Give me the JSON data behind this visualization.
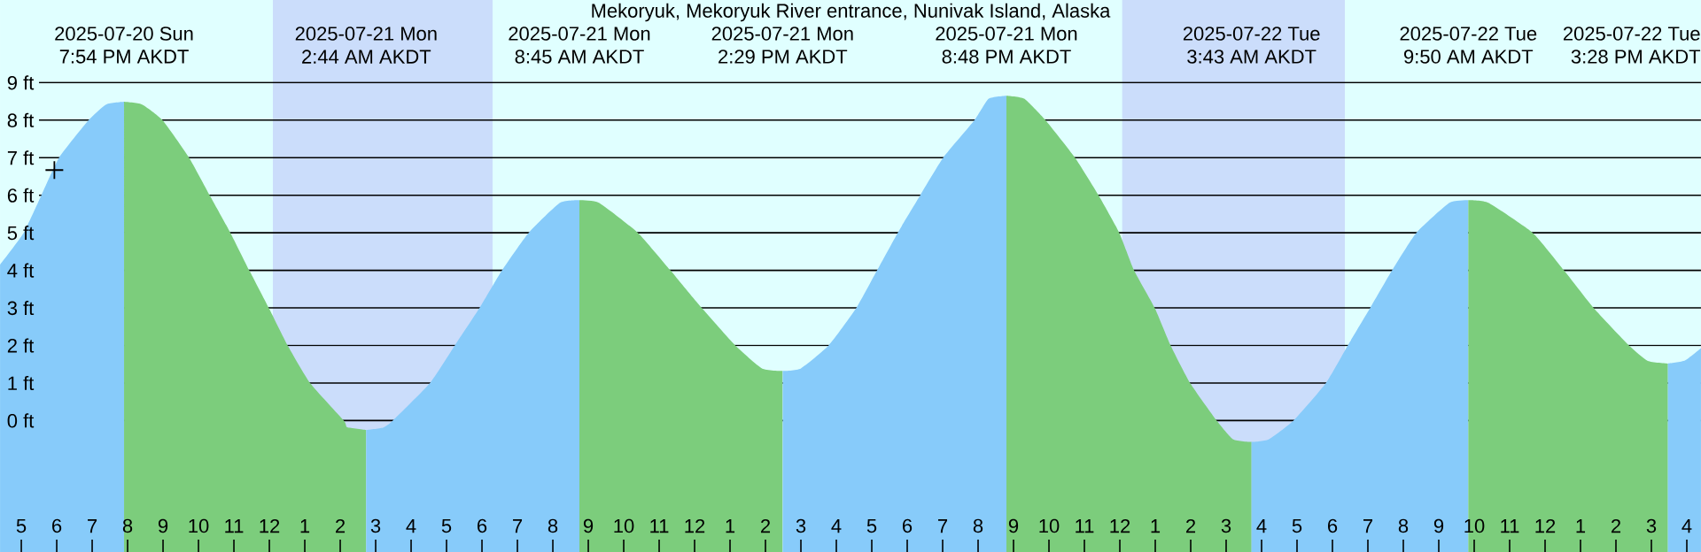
{
  "chart_data": {
    "type": "area",
    "title": "Mekoryuk, Mekoryuk River entrance, Nunivak Island, Alaska",
    "xlim": [
      "2025-07-20T16:24",
      "2025-07-22T16:24"
    ],
    "ylim": [
      -3.5,
      11.2
    ],
    "xticks": [
      {
        "value": "2025-07-20T17:00",
        "label": "5"
      },
      {
        "value": "2025-07-20T18:00",
        "label": "6"
      },
      {
        "value": "2025-07-20T19:00",
        "label": "7"
      },
      {
        "value": "2025-07-20T20:00",
        "label": "8"
      },
      {
        "value": "2025-07-20T21:00",
        "label": "9"
      },
      {
        "value": "2025-07-20T22:00",
        "label": "10"
      },
      {
        "value": "2025-07-20T23:00",
        "label": "11"
      },
      {
        "value": "2025-07-21T00:00",
        "label": "12"
      },
      {
        "value": "2025-07-21T01:00",
        "label": "1"
      },
      {
        "value": "2025-07-21T02:00",
        "label": "2"
      },
      {
        "value": "2025-07-21T03:00",
        "label": "3"
      },
      {
        "value": "2025-07-21T04:00",
        "label": "4"
      },
      {
        "value": "2025-07-21T05:00",
        "label": "5"
      },
      {
        "value": "2025-07-21T06:00",
        "label": "6"
      },
      {
        "value": "2025-07-21T07:00",
        "label": "7"
      },
      {
        "value": "2025-07-21T08:00",
        "label": "8"
      },
      {
        "value": "2025-07-21T09:00",
        "label": "9"
      },
      {
        "value": "2025-07-21T10:00",
        "label": "10"
      },
      {
        "value": "2025-07-21T11:00",
        "label": "11"
      },
      {
        "value": "2025-07-21T12:00",
        "label": "12"
      },
      {
        "value": "2025-07-21T13:00",
        "label": "1"
      },
      {
        "value": "2025-07-21T14:00",
        "label": "2"
      },
      {
        "value": "2025-07-21T15:00",
        "label": "3"
      },
      {
        "value": "2025-07-21T16:00",
        "label": "4"
      },
      {
        "value": "2025-07-21T17:00",
        "label": "5"
      },
      {
        "value": "2025-07-21T18:00",
        "label": "6"
      },
      {
        "value": "2025-07-21T19:00",
        "label": "7"
      },
      {
        "value": "2025-07-21T20:00",
        "label": "8"
      },
      {
        "value": "2025-07-21T21:00",
        "label": "9"
      },
      {
        "value": "2025-07-21T22:00",
        "label": "10"
      },
      {
        "value": "2025-07-21T23:00",
        "label": "11"
      },
      {
        "value": "2025-07-22T00:00",
        "label": "12"
      },
      {
        "value": "2025-07-22T01:00",
        "label": "1"
      },
      {
        "value": "2025-07-22T02:00",
        "label": "2"
      },
      {
        "value": "2025-07-22T03:00",
        "label": "3"
      },
      {
        "value": "2025-07-22T04:00",
        "label": "4"
      },
      {
        "value": "2025-07-22T05:00",
        "label": "5"
      },
      {
        "value": "2025-07-22T06:00",
        "label": "6"
      },
      {
        "value": "2025-07-22T07:00",
        "label": "7"
      },
      {
        "value": "2025-07-22T08:00",
        "label": "8"
      },
      {
        "value": "2025-07-22T09:00",
        "label": "9"
      },
      {
        "value": "2025-07-22T10:00",
        "label": "10"
      },
      {
        "value": "2025-07-22T11:00",
        "label": "11"
      },
      {
        "value": "2025-07-22T12:00",
        "label": "12"
      },
      {
        "value": "2025-07-22T13:00",
        "label": "1"
      },
      {
        "value": "2025-07-22T14:00",
        "label": "2"
      },
      {
        "value": "2025-07-22T15:00",
        "label": "3"
      },
      {
        "value": "2025-07-22T16:00",
        "label": "4"
      }
    ],
    "yticks": [
      {
        "value": 0,
        "label": "0 ft"
      },
      {
        "value": 1,
        "label": "1 ft"
      },
      {
        "value": 2,
        "label": "2 ft"
      },
      {
        "value": 3,
        "label": "3 ft"
      },
      {
        "value": 4,
        "label": "4 ft"
      },
      {
        "value": 5,
        "label": "5 ft"
      },
      {
        "value": 6,
        "label": "6 ft"
      },
      {
        "value": 7,
        "label": "7 ft"
      },
      {
        "value": 8,
        "label": "8 ft"
      },
      {
        "value": 9,
        "label": "9 ft"
      }
    ],
    "grid": "y",
    "bands": [
      {
        "axis": "x",
        "from": "2025-07-21T00:06",
        "to": "2025-07-21T06:18",
        "color": "#cbddfb"
      },
      {
        "axis": "x",
        "from": "2025-07-22T00:04",
        "to": "2025-07-22T06:21",
        "color": "#cbddfb"
      }
    ],
    "annotations": [
      "2025-07-20 Sun",
      "7:54 PM AKDT",
      "2025-07-21 Mon",
      "2:44 AM AKDT",
      "2025-07-21 Mon",
      "8:45 AM AKDT",
      "2025-07-21 Mon",
      "2:29 PM AKDT",
      "2025-07-21 Mon",
      "8:48 PM AKDT",
      "2025-07-22 Tue",
      "3:43 AM AKDT",
      "2025-07-22 Tue",
      "9:50 AM AKDT",
      "2025-07-22 Tue",
      "3:28 PM AKDT"
    ],
    "series": [
      {
        "color": "#87cbfa",
        "x": [
          "2025-07-20T16:24",
          "2025-07-20T17:04",
          "2025-07-20T17:34",
          "2025-07-20T18:04",
          "2025-07-20T18:54",
          "2025-07-20T19:24",
          "2025-07-20T19:54"
        ],
        "values": [
          4.15,
          5,
          6,
          7,
          8,
          8.42,
          8.49
        ]
      },
      {
        "color": "#7ccd7c",
        "x": [
          "2025-07-20T19:54",
          "2025-07-20T20:24",
          "2025-07-20T20:59",
          "2025-07-20T21:44",
          "2025-07-20T22:19",
          "2025-07-20T22:54",
          "2025-07-20T23:26",
          "2025-07-20T23:59",
          "2025-07-21T00:31",
          "2025-07-21T01:09",
          "2025-07-21T02:06",
          "2025-07-21T02:12",
          "2025-07-21T02:44"
        ],
        "values": [
          8.49,
          8.42,
          8,
          7,
          6,
          5,
          4,
          3,
          2,
          1,
          0,
          -0.18,
          -0.25
        ]
      },
      {
        "color": "#87cbfa",
        "x": [
          "2025-07-21T02:44",
          "2025-07-21T03:12",
          "2025-07-21T03:29",
          "2025-07-21T04:32",
          "2025-07-21T05:14",
          "2025-07-21T05:56",
          "2025-07-21T06:34",
          "2025-07-21T07:19",
          "2025-07-21T08:12",
          "2025-07-21T08:45"
        ],
        "values": [
          -0.25,
          -0.19,
          0,
          1,
          2,
          3,
          4,
          5,
          5.8,
          5.87
        ]
      },
      {
        "color": "#7ccd7c",
        "x": [
          "2025-07-21T08:45",
          "2025-07-21T09:18",
          "2025-07-21T10:24",
          "2025-07-21T11:19",
          "2025-07-21T12:12",
          "2025-07-21T13:09",
          "2025-07-21T13:54",
          "2025-07-21T14:29"
        ],
        "values": [
          5.87,
          5.8,
          5,
          4,
          3,
          2,
          1.39,
          1.32
        ]
      },
      {
        "color": "#87cbfa",
        "x": [
          "2025-07-21T14:29",
          "2025-07-21T15:00",
          "2025-07-21T15:47",
          "2025-07-21T16:34",
          "2025-07-21T17:09",
          "2025-07-21T17:44",
          "2025-07-21T18:22",
          "2025-07-21T19:01",
          "2025-07-21T19:54",
          "2025-07-21T20:18",
          "2025-07-21T20:48"
        ],
        "values": [
          1.32,
          1.39,
          2,
          3,
          4,
          5,
          6,
          7,
          8,
          8.57,
          8.65
        ]
      },
      {
        "color": "#7ccd7c",
        "x": [
          "2025-07-21T20:48",
          "2025-07-21T21:18",
          "2025-07-21T21:54",
          "2025-07-21T22:44",
          "2025-07-21T23:24",
          "2025-07-21T23:59",
          "2025-07-22T00:24",
          "2025-07-22T00:59",
          "2025-07-22T01:26",
          "2025-07-22T01:59",
          "2025-07-22T02:44",
          "2025-07-22T03:12",
          "2025-07-22T03:43"
        ],
        "values": [
          8.65,
          8.57,
          8,
          7,
          6,
          5,
          4,
          3,
          2,
          1,
          0,
          -0.5,
          -0.57
        ]
      },
      {
        "color": "#87cbfa",
        "x": [
          "2025-07-22T03:43",
          "2025-07-22T04:12",
          "2025-07-22T04:54",
          "2025-07-22T05:49",
          "2025-07-22T06:26",
          "2025-07-22T07:04",
          "2025-07-22T07:41",
          "2025-07-22T08:22",
          "2025-07-22T09:18",
          "2025-07-22T09:50"
        ],
        "values": [
          -0.57,
          -0.5,
          0,
          1,
          2,
          3,
          4,
          5,
          5.8,
          5.87
        ]
      },
      {
        "color": "#7ccd7c",
        "x": [
          "2025-07-22T09:50",
          "2025-07-22T10:24",
          "2025-07-22T11:39",
          "2025-07-22T12:32",
          "2025-07-22T13:22",
          "2025-07-22T14:22",
          "2025-07-22T14:54",
          "2025-07-22T15:28"
        ],
        "values": [
          5.87,
          5.8,
          5,
          4,
          3,
          2,
          1.59,
          1.52
        ]
      },
      {
        "color": "#87cbfa",
        "x": [
          "2025-07-22T15:28",
          "2025-07-22T15:57",
          "2025-07-22T16:24"
        ],
        "values": [
          1.52,
          1.6,
          1.93
        ]
      },
      {
        "type": "scatter",
        "marker": "cross",
        "color": "#000000",
        "x": [
          "2025-07-20T17:56"
        ],
        "values": [
          6.67
        ]
      }
    ]
  }
}
